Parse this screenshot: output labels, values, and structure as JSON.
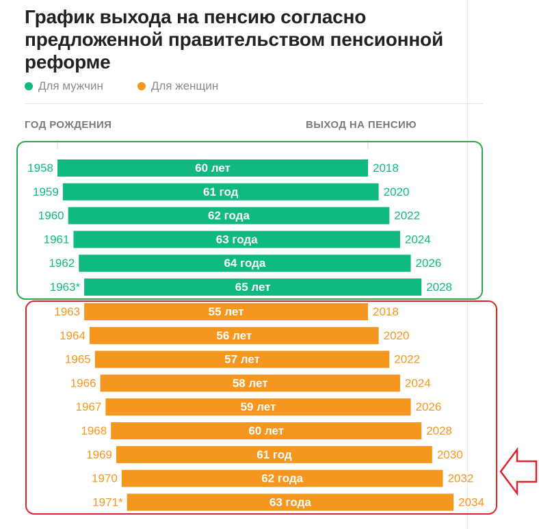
{
  "title": "График выхода на пенсию согласно предложенной правительством пенсионной реформе",
  "legend": [
    {
      "label": "Для мужчин",
      "color": "#10b981"
    },
    {
      "label": "Для женщин",
      "color": "#f5961e"
    }
  ],
  "columns": {
    "left": "ГОД РОЖДЕНИЯ",
    "right": "ВЫХОД НА ПЕНСИЮ"
  },
  "chart_data": {
    "type": "bar",
    "series": [
      {
        "name": "Для мужчин",
        "color": "#10b981",
        "rows": [
          {
            "birth": "1958",
            "age_label": "60 лет",
            "retire": "2018",
            "birth_year": 1958,
            "retire_year": 2018
          },
          {
            "birth": "1959",
            "age_label": "61 год",
            "retire": "2020",
            "birth_year": 1959,
            "retire_year": 2020
          },
          {
            "birth": "1960",
            "age_label": "62 года",
            "retire": "2022",
            "birth_year": 1960,
            "retire_year": 2022
          },
          {
            "birth": "1961",
            "age_label": "63 года",
            "retire": "2024",
            "birth_year": 1961,
            "retire_year": 2024
          },
          {
            "birth": "1962",
            "age_label": "64 года",
            "retire": "2026",
            "birth_year": 1962,
            "retire_year": 2026
          },
          {
            "birth": "1963*",
            "age_label": "65 лет",
            "retire": "2028",
            "birth_year": 1963,
            "retire_year": 2028
          }
        ]
      },
      {
        "name": "Для женщин",
        "color": "#f5961e",
        "rows": [
          {
            "birth": "1963",
            "age_label": "55 лет",
            "retire": "2018",
            "birth_year": 1963,
            "retire_year": 2018
          },
          {
            "birth": "1964",
            "age_label": "56 лет",
            "retire": "2020",
            "birth_year": 1964,
            "retire_year": 2020
          },
          {
            "birth": "1965",
            "age_label": "57 лет",
            "retire": "2022",
            "birth_year": 1965,
            "retire_year": 2022
          },
          {
            "birth": "1966",
            "age_label": "58 лет",
            "retire": "2024",
            "birth_year": 1966,
            "retire_year": 2024
          },
          {
            "birth": "1967",
            "age_label": "59 лет",
            "retire": "2026",
            "birth_year": 1967,
            "retire_year": 2026
          },
          {
            "birth": "1968",
            "age_label": "60 лет",
            "retire": "2028",
            "birth_year": 1968,
            "retire_year": 2028
          },
          {
            "birth": "1969",
            "age_label": "61 год",
            "retire": "2030",
            "birth_year": 1969,
            "retire_year": 2030
          },
          {
            "birth": "1970",
            "age_label": "62 года",
            "retire": "2032",
            "birth_year": 1970,
            "retire_year": 2032
          },
          {
            "birth": "1971*",
            "age_label": "63 года",
            "retire": "2034",
            "birth_year": 1971,
            "retire_year": 2034
          }
        ]
      }
    ]
  },
  "annotations": {
    "men_box_color": "#2aa84a",
    "women_box_color": "#e0202a",
    "arrow_color": "#e0202a",
    "arrow_icon": "left-arrow-icon"
  }
}
